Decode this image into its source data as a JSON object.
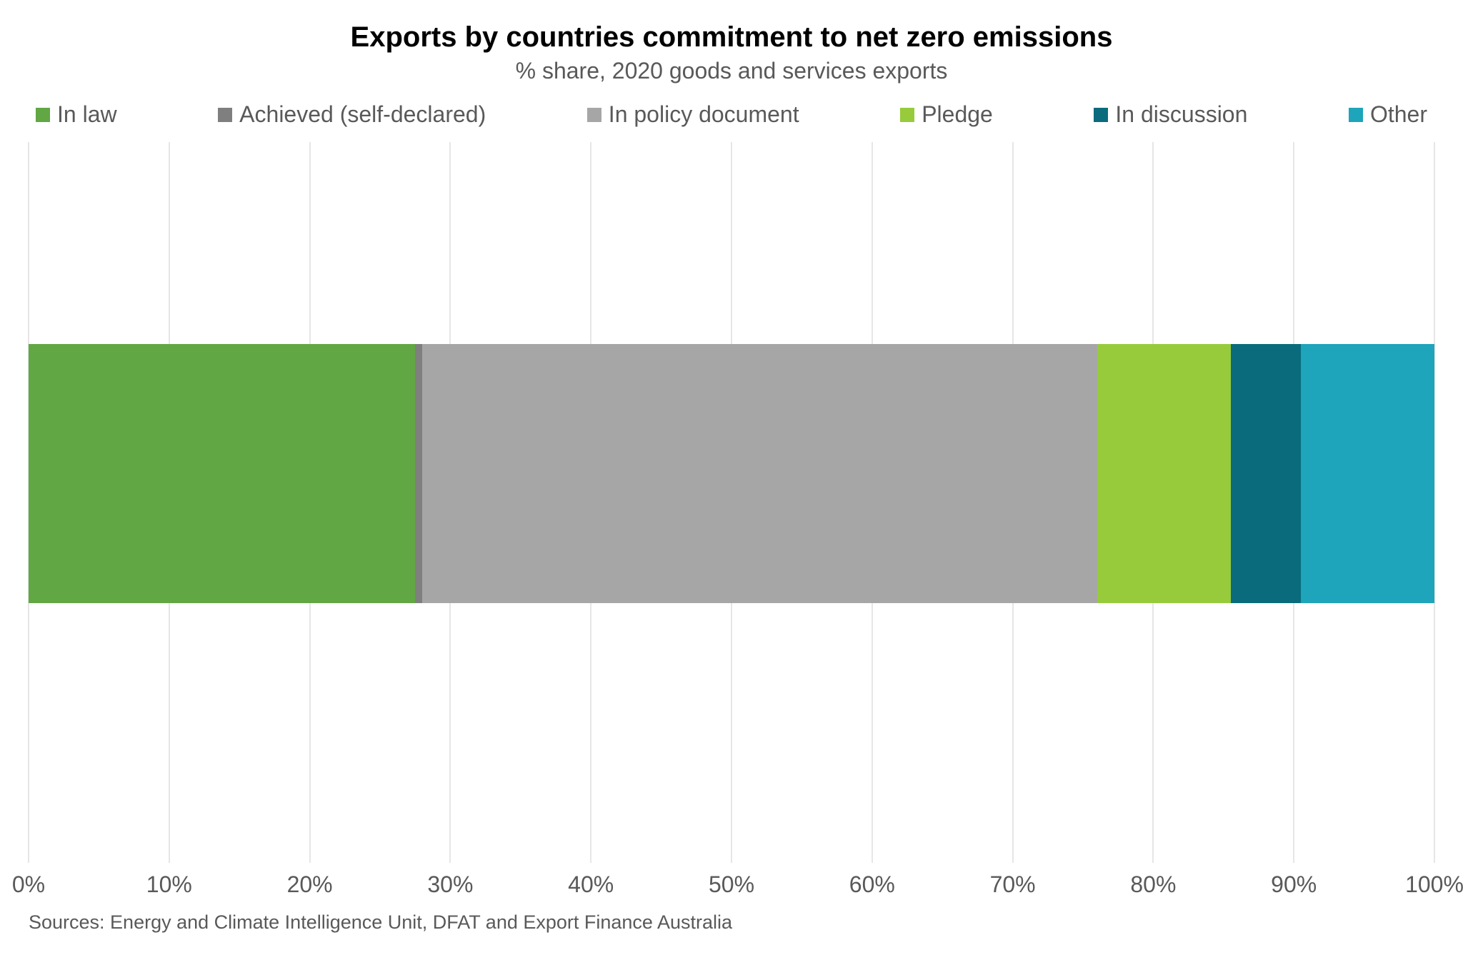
{
  "chart": {
    "type": "stacked-bar-horizontal",
    "title": "Exports by countries commitment to net zero emissions",
    "subtitle": "% share, 2020 goods and services exports",
    "title_fontsize": 40,
    "title_color": "#000000",
    "subtitle_fontsize": 32,
    "subtitle_color": "#595959",
    "background_color": "#ffffff",
    "grid_color": "#e6e6e6",
    "legend": {
      "items": [
        {
          "label": "In law",
          "color": "#61a744"
        },
        {
          "label": "Achieved (self-declared)",
          "color": "#7f7f7f"
        },
        {
          "label": "In policy document",
          "color": "#a6a6a6"
        },
        {
          "label": "Pledge",
          "color": "#97cb3c"
        },
        {
          "label": "In discussion",
          "color": "#0a6b7c"
        },
        {
          "label": "Other",
          "color": "#1ea4bb"
        }
      ],
      "fontsize": 32,
      "label_color": "#595959"
    },
    "series": [
      {
        "name": "In law",
        "value": 27.5,
        "color": "#61a744"
      },
      {
        "name": "Achieved (self-declared)",
        "value": 0.5,
        "color": "#7f7f7f"
      },
      {
        "name": "In policy document",
        "value": 48.0,
        "color": "#a6a6a6"
      },
      {
        "name": "Pledge",
        "value": 9.5,
        "color": "#97cb3c"
      },
      {
        "name": "In discussion",
        "value": 5.0,
        "color": "#0a6b7c"
      },
      {
        "name": "Other",
        "value": 9.5,
        "color": "#1ea4bb"
      }
    ],
    "x_axis": {
      "min": 0,
      "max": 100,
      "tick_step": 10,
      "ticks": [
        "0%",
        "10%",
        "20%",
        "30%",
        "40%",
        "50%",
        "60%",
        "70%",
        "80%",
        "90%",
        "100%"
      ],
      "label_fontsize": 32,
      "label_color": "#595959"
    },
    "bar": {
      "top_pct": 28,
      "height_pct": 36
    },
    "source": {
      "text": "Sources: Energy and Climate Intelligence Unit, DFAT and Export Finance Australia",
      "fontsize": 27,
      "color": "#595959"
    }
  }
}
